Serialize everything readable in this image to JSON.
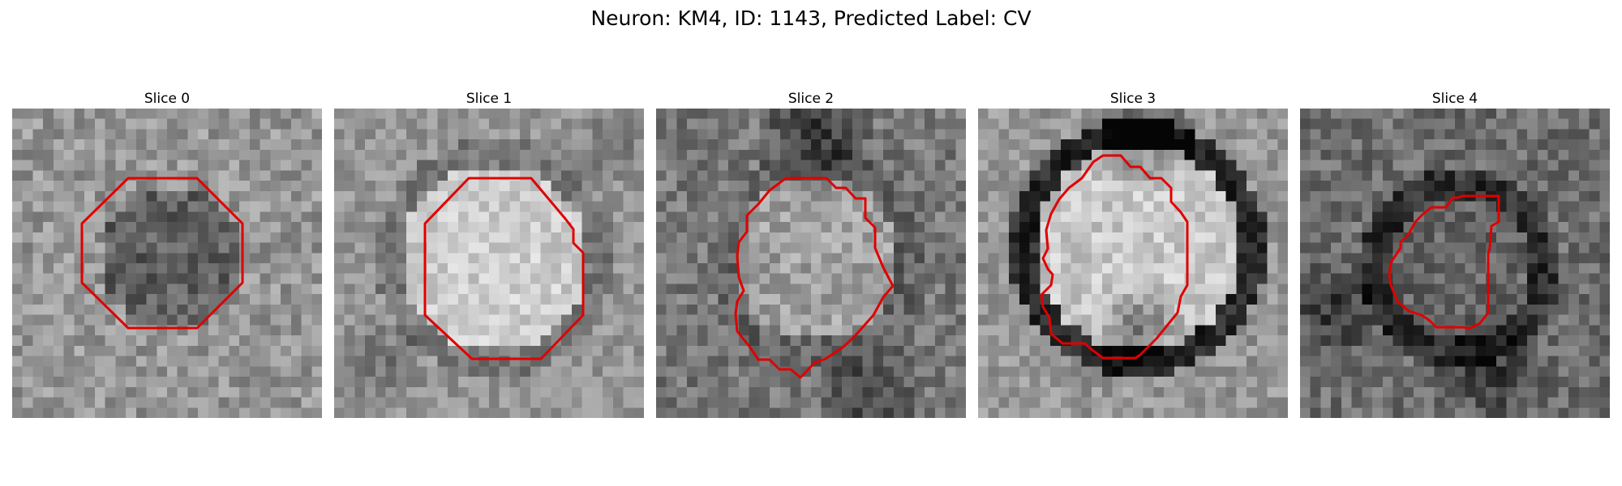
{
  "figure": {
    "title": "Neuron: KM4, ID: 1143, Predicted Label: CV"
  },
  "colors": {
    "contour": "#e00000",
    "background": "#ffffff"
  },
  "panels": [
    {
      "label": "Slice 0"
    },
    {
      "label": "Slice 1"
    },
    {
      "label": "Slice 2"
    },
    {
      "label": "Slice 3"
    },
    {
      "label": "Slice 4"
    }
  ]
}
